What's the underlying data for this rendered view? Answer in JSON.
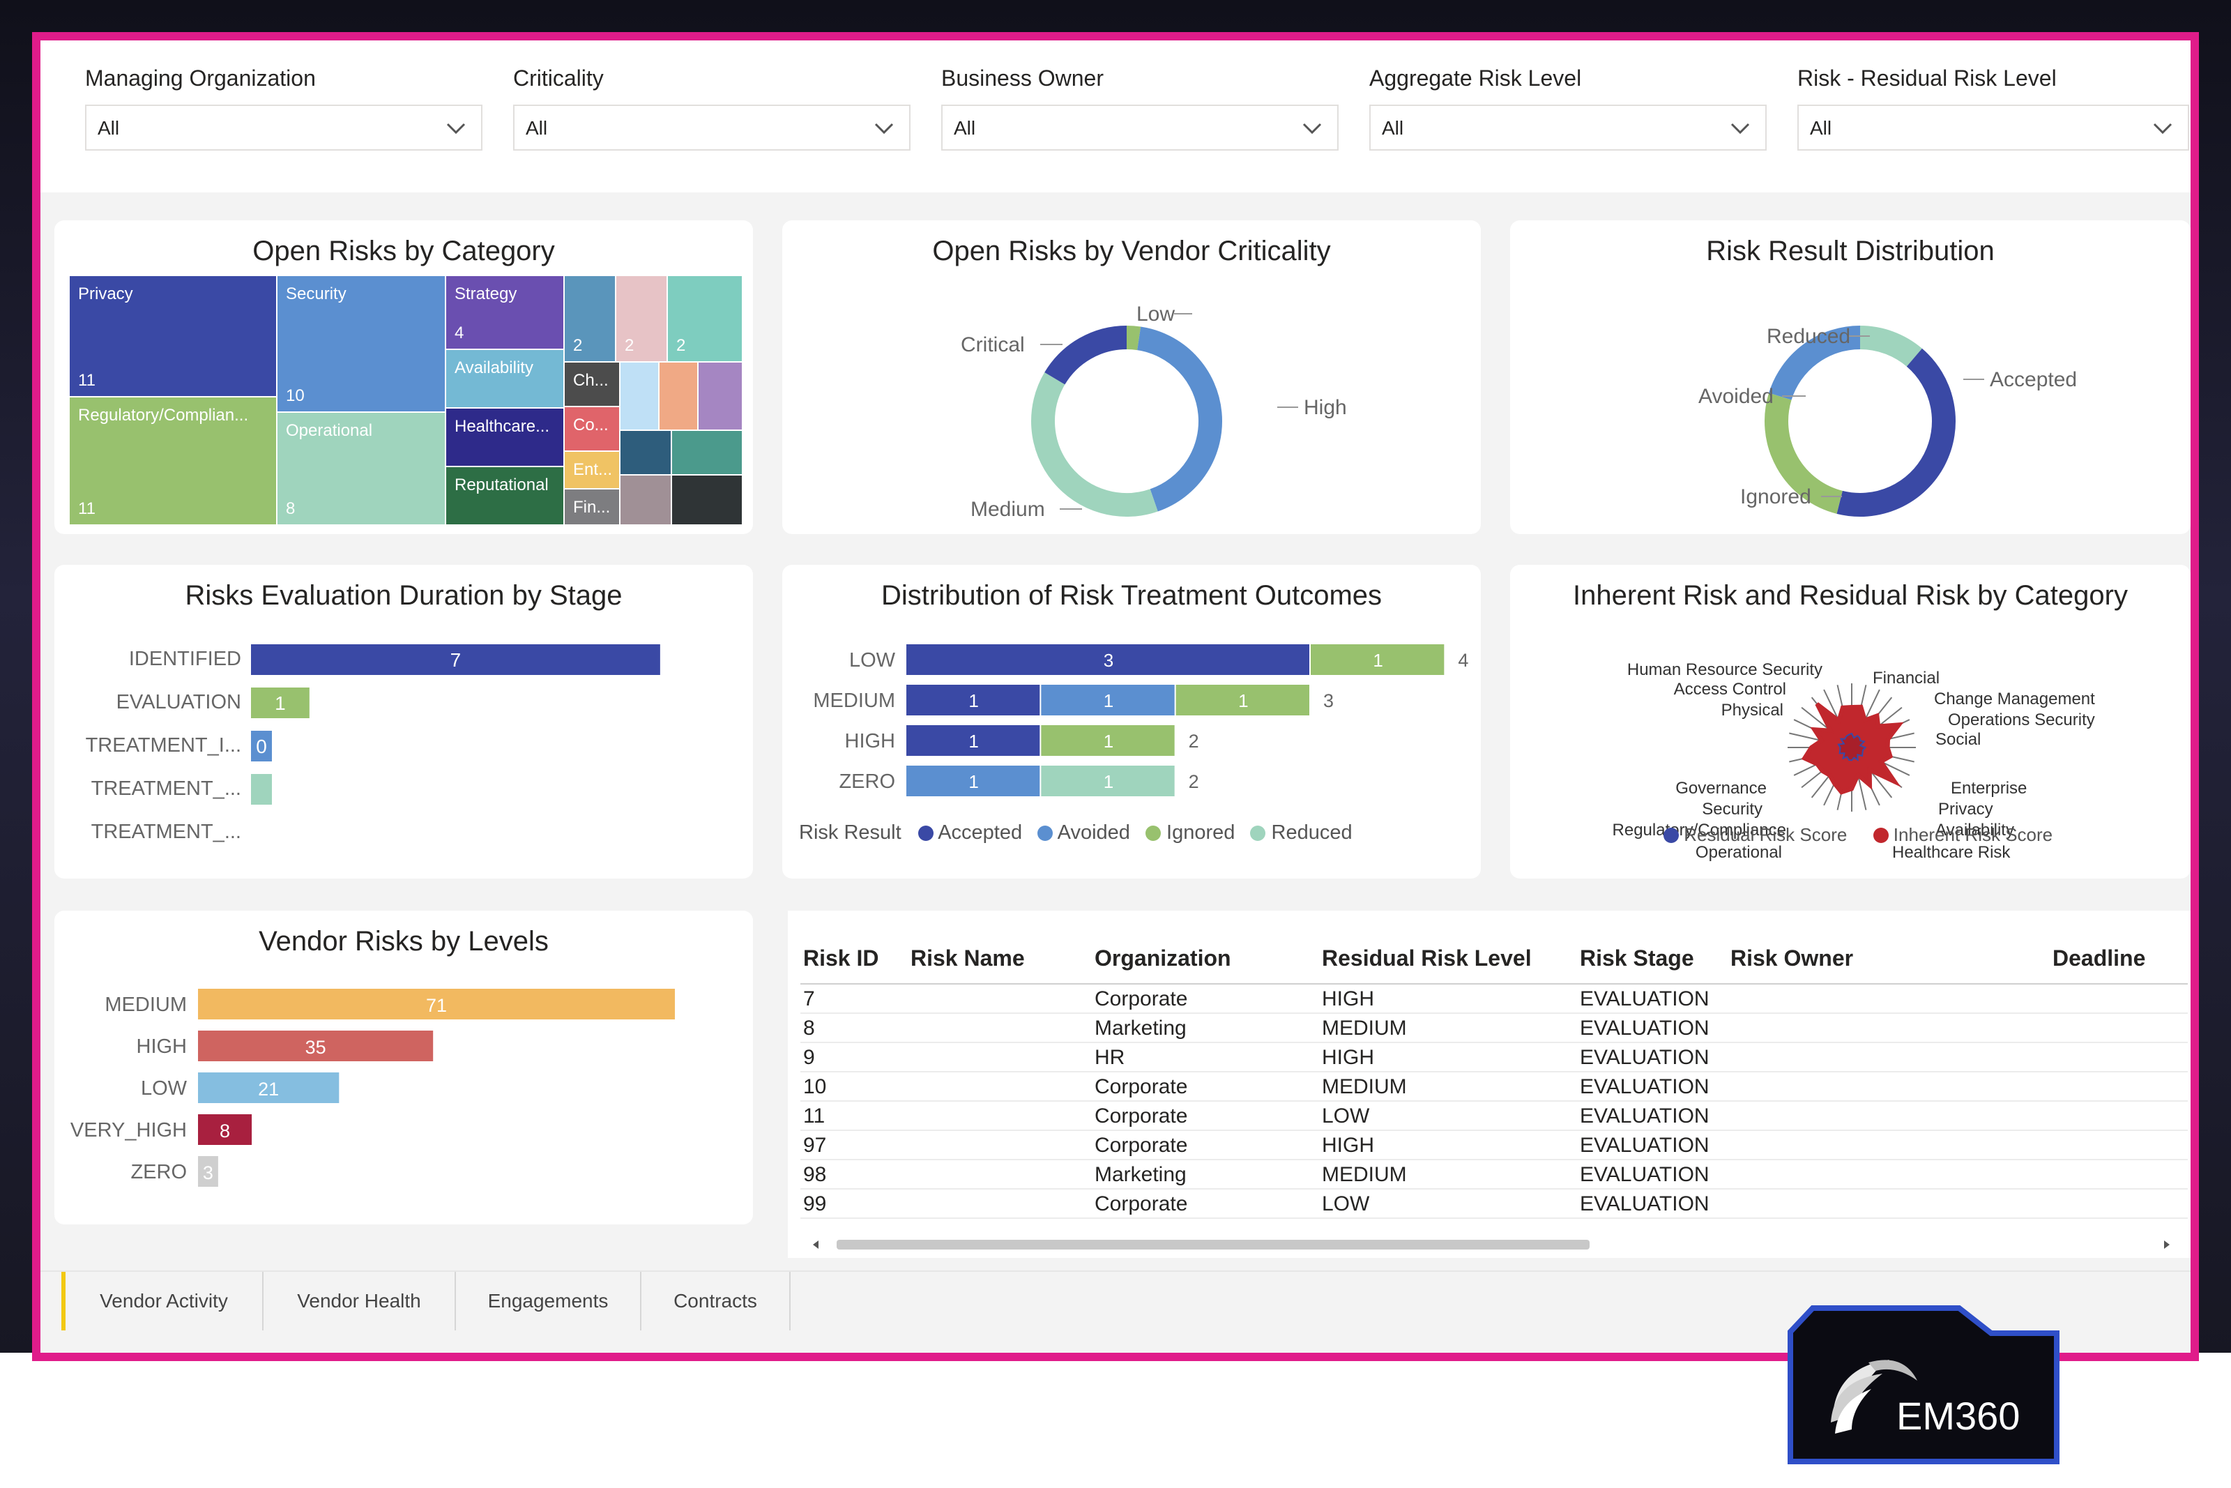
{
  "filters": [
    {
      "label": "Managing Organization",
      "value": "All"
    },
    {
      "label": "Criticality",
      "value": "All"
    },
    {
      "label": "Business Owner",
      "value": "All"
    },
    {
      "label": "Aggregate Risk Level",
      "value": "All"
    },
    {
      "label": "Risk - Residual Risk Level",
      "value": "All"
    }
  ],
  "open_risks_by_category": {
    "title": "Open Risks by Category",
    "tiles": [
      {
        "label": "Privacy",
        "value": "11",
        "color": "#3a49a5"
      },
      {
        "label": "Security",
        "value": "10",
        "color": "#5b8fd0"
      },
      {
        "label": "Regulatory/Complian...",
        "value": "11",
        "color": "#98c16e"
      },
      {
        "label": "Operational",
        "value": "8",
        "color": "#9fd4bd"
      },
      {
        "label": "Strategy",
        "value": "4",
        "color": "#6a4fb0"
      },
      {
        "label": "Availability",
        "value": "",
        "color": "#74b9d4"
      },
      {
        "label": "Healthcare...",
        "value": "",
        "color": "#2e2a8a"
      },
      {
        "label": "Reputational",
        "value": "",
        "color": "#2d6e45"
      },
      {
        "label": "",
        "value": "2",
        "color": "#5a95bb"
      },
      {
        "label": "",
        "value": "2",
        "color": "#e7c3c6"
      },
      {
        "label": "",
        "value": "2",
        "color": "#7ecdbf"
      },
      {
        "label": "Ch...",
        "value": "",
        "color": "#4c4c4c"
      },
      {
        "label": "Co...",
        "value": "",
        "color": "#e0646a"
      },
      {
        "label": "Ent...",
        "value": "",
        "color": "#f0c364"
      },
      {
        "label": "Fin...",
        "value": "",
        "color": "#7d7d80"
      },
      {
        "label": "",
        "value": "",
        "color": "#bfe0f6"
      },
      {
        "label": "",
        "value": "",
        "color": "#f0a985"
      },
      {
        "label": "",
        "value": "",
        "color": "#a586c2"
      },
      {
        "label": "",
        "value": "",
        "color": "#2e5d7c"
      },
      {
        "label": "",
        "value": "",
        "color": "#4b9a8c"
      },
      {
        "label": "",
        "value": "",
        "color": "#a09096"
      },
      {
        "label": "",
        "value": "",
        "color": "#2f3436"
      }
    ]
  },
  "vendor_criticality": {
    "title": "Open Risks by Vendor Criticality",
    "labels": [
      "Low",
      "High",
      "Medium",
      "Critical"
    ]
  },
  "risk_result_distribution": {
    "title": "Risk Result Distribution",
    "labels": [
      "Reduced",
      "Accepted",
      "Ignored",
      "Avoided"
    ]
  },
  "evaluation_duration": {
    "title": "Risks Evaluation Duration by Stage",
    "stages": [
      "IDENTIFIED",
      "EVALUATION",
      "TREATMENT_I...",
      "TREATMENT_...",
      "TREATMENT_..."
    ]
  },
  "treatment_outcomes": {
    "title": "Distribution of Risk Treatment Outcomes",
    "legend_title": "Risk Result",
    "legend": [
      "Accepted",
      "Avoided",
      "Ignored",
      "Reduced"
    ]
  },
  "inherent_residual": {
    "title": "Inherent Risk and Residual Risk by Category",
    "categories": [
      "Financial",
      "Change Management",
      "Operations Security",
      "Social",
      "Enterprise",
      "Privacy",
      "Availability",
      "Healthcare Risk",
      "Operational",
      "Regulatory/Compliance",
      "Security",
      "Governance",
      "Physical",
      "Access Control",
      "Human Resource Security"
    ],
    "legend": [
      "Residual Risk Score",
      "Inherent Risk Score"
    ]
  },
  "vendor_levels": {
    "title": "Vendor Risks by Levels"
  },
  "chart_data": [
    {
      "type": "bar",
      "title": "Risks Evaluation Duration by Stage",
      "orientation": "horizontal",
      "categories": [
        "IDENTIFIED",
        "EVALUATION",
        "TREATMENT_I...",
        "TREATMENT_...",
        "TREATMENT_..."
      ],
      "values": [
        7,
        1,
        0,
        0.2,
        0
      ],
      "colors": [
        "#3a49a5",
        "#98c16e",
        "#5b8fd0",
        "#9fd4bd",
        "#9fd4bd"
      ],
      "data_labels": [
        "7",
        "1",
        "0",
        "",
        ""
      ],
      "xlim": [
        0,
        7.3
      ]
    },
    {
      "type": "bar",
      "stacked": true,
      "orientation": "horizontal",
      "title": "Distribution of Risk Treatment Outcomes",
      "categories": [
        "LOW",
        "MEDIUM",
        "HIGH",
        "ZERO"
      ],
      "series": [
        {
          "name": "Accepted",
          "color": "#3a49a5",
          "values": [
            3,
            1,
            1,
            0
          ]
        },
        {
          "name": "Avoided",
          "color": "#5b8fd0",
          "values": [
            0,
            1,
            0,
            1
          ]
        },
        {
          "name": "Ignored",
          "color": "#98c16e",
          "values": [
            1,
            1,
            1,
            0
          ]
        },
        {
          "name": "Reduced",
          "color": "#9fd4bd",
          "values": [
            0,
            0,
            0,
            1
          ]
        }
      ],
      "totals": [
        4,
        3,
        2,
        2
      ],
      "xlim": [
        0,
        4.2
      ]
    },
    {
      "type": "bar",
      "orientation": "horizontal",
      "title": "Vendor Risks by Levels",
      "categories": [
        "MEDIUM",
        "HIGH",
        "LOW",
        "VERY_HIGH",
        "ZERO"
      ],
      "values": [
        71,
        35,
        21,
        8,
        3
      ],
      "colors": [
        "#f2b960",
        "#cf6460",
        "#85bee0",
        "#a8203f",
        "#cfcfcf"
      ],
      "xlim": [
        0,
        73
      ]
    },
    {
      "type": "pie",
      "donut": true,
      "title": "Open Risks by Vendor Criticality",
      "categories": [
        "Low",
        "High",
        "Medium",
        "Critical"
      ],
      "values": [
        2,
        36,
        33,
        14
      ],
      "colors": [
        "#98c16e",
        "#5b8fd0",
        "#9fd4bd",
        "#3a49a5"
      ]
    },
    {
      "type": "pie",
      "donut": true,
      "title": "Risk Result Distribution",
      "categories": [
        "Reduced",
        "Accepted",
        "Ignored",
        "Avoided"
      ],
      "values": [
        10,
        38,
        23,
        18
      ],
      "colors": [
        "#9fd4bd",
        "#3a49a5",
        "#98c16e",
        "#5b8fd0"
      ]
    }
  ],
  "table": {
    "columns": [
      "Risk ID",
      "Risk Name",
      "Organization",
      "Residual Risk Level",
      "Risk Stage",
      "Risk Owner",
      "Deadline"
    ],
    "rows": [
      [
        "7",
        "",
        "Corporate",
        "HIGH",
        "EVALUATION",
        "",
        ""
      ],
      [
        "8",
        "",
        "Marketing",
        "MEDIUM",
        "EVALUATION",
        "",
        ""
      ],
      [
        "9",
        "",
        "HR",
        "HIGH",
        "EVALUATION",
        "",
        ""
      ],
      [
        "10",
        "",
        "Corporate",
        "MEDIUM",
        "EVALUATION",
        "",
        ""
      ],
      [
        "11",
        "",
        "Corporate",
        "LOW",
        "EVALUATION",
        "",
        ""
      ],
      [
        "97",
        "",
        "Corporate",
        "HIGH",
        "EVALUATION",
        "",
        ""
      ],
      [
        "98",
        "",
        "Marketing",
        "MEDIUM",
        "EVALUATION",
        "",
        ""
      ],
      [
        "99",
        "",
        "Corporate",
        "LOW",
        "EVALUATION",
        "",
        ""
      ]
    ]
  },
  "tabs": [
    "Vendor Activity",
    "Vendor Health",
    "Engagements",
    "Contracts"
  ],
  "logo": {
    "text": "EM360"
  }
}
